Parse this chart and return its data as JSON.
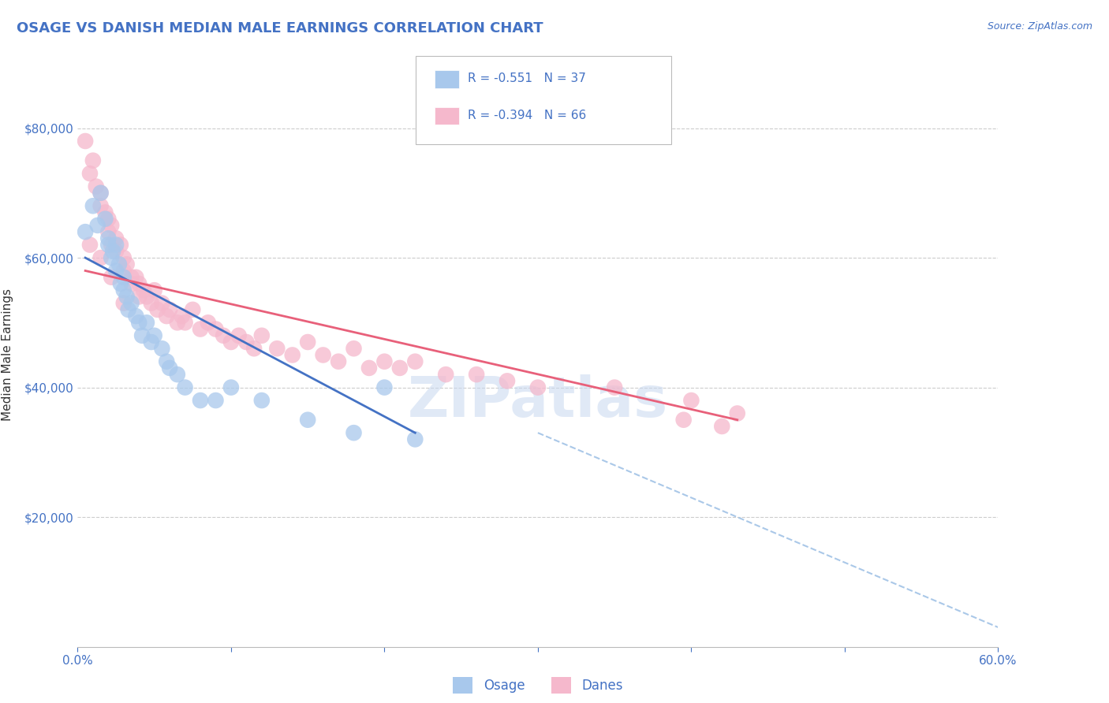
{
  "title": "OSAGE VS DANISH MEDIAN MALE EARNINGS CORRELATION CHART",
  "source_text": "Source: ZipAtlas.com",
  "ylabel": "Median Male Earnings",
  "xmin": 0.0,
  "xmax": 0.6,
  "ymin": 0,
  "ymax": 90000,
  "yticks": [
    20000,
    40000,
    60000,
    80000
  ],
  "ytick_labels": [
    "$20,000",
    "$40,000",
    "$60,000",
    "$80,000"
  ],
  "xticks": [
    0.0,
    0.1,
    0.2,
    0.3,
    0.4,
    0.5,
    0.6
  ],
  "xtick_labels": [
    "0.0%",
    "",
    "",
    "",
    "",
    "",
    "60.0%"
  ],
  "blue_color": "#a8c8ec",
  "pink_color": "#f5b8cc",
  "blue_line_color": "#4472c4",
  "pink_line_color": "#e8607a",
  "axis_color": "#4472c4",
  "title_color": "#4472c4",
  "background_color": "#ffffff",
  "grid_color": "#cccccc",
  "watermark_color": "#c8d8f0",
  "osage_x": [
    0.005,
    0.01,
    0.013,
    0.015,
    0.018,
    0.02,
    0.02,
    0.022,
    0.023,
    0.025,
    0.025,
    0.027,
    0.028,
    0.03,
    0.03,
    0.032,
    0.033,
    0.035,
    0.038,
    0.04,
    0.042,
    0.045,
    0.048,
    0.05,
    0.055,
    0.058,
    0.06,
    0.065,
    0.07,
    0.08,
    0.09,
    0.1,
    0.12,
    0.15,
    0.18,
    0.2,
    0.22
  ],
  "osage_y": [
    64000,
    68000,
    65000,
    70000,
    66000,
    63000,
    62000,
    60000,
    61000,
    58000,
    62000,
    59000,
    56000,
    57000,
    55000,
    54000,
    52000,
    53000,
    51000,
    50000,
    48000,
    50000,
    47000,
    48000,
    46000,
    44000,
    43000,
    42000,
    40000,
    38000,
    38000,
    40000,
    38000,
    35000,
    33000,
    40000,
    32000
  ],
  "danes_x": [
    0.005,
    0.008,
    0.01,
    0.012,
    0.015,
    0.015,
    0.018,
    0.02,
    0.02,
    0.022,
    0.022,
    0.025,
    0.025,
    0.028,
    0.03,
    0.03,
    0.032,
    0.035,
    0.035,
    0.038,
    0.04,
    0.04,
    0.043,
    0.045,
    0.048,
    0.05,
    0.052,
    0.055,
    0.058,
    0.06,
    0.065,
    0.068,
    0.07,
    0.075,
    0.08,
    0.085,
    0.09,
    0.095,
    0.1,
    0.105,
    0.11,
    0.115,
    0.12,
    0.13,
    0.14,
    0.15,
    0.16,
    0.17,
    0.18,
    0.19,
    0.2,
    0.21,
    0.22,
    0.24,
    0.26,
    0.28,
    0.3,
    0.35,
    0.4,
    0.43,
    0.008,
    0.015,
    0.022,
    0.03,
    0.395,
    0.42
  ],
  "danes_y": [
    78000,
    73000,
    75000,
    71000,
    70000,
    68000,
    67000,
    66000,
    64000,
    65000,
    62000,
    63000,
    61000,
    62000,
    60000,
    58000,
    59000,
    57000,
    56000,
    57000,
    56000,
    54000,
    55000,
    54000,
    53000,
    55000,
    52000,
    53000,
    51000,
    52000,
    50000,
    51000,
    50000,
    52000,
    49000,
    50000,
    49000,
    48000,
    47000,
    48000,
    47000,
    46000,
    48000,
    46000,
    45000,
    47000,
    45000,
    44000,
    46000,
    43000,
    44000,
    43000,
    44000,
    42000,
    42000,
    41000,
    40000,
    40000,
    38000,
    36000,
    62000,
    60000,
    57000,
    53000,
    35000,
    34000
  ],
  "dash_line_x": [
    0.3,
    0.6
  ],
  "dash_line_y": [
    33000,
    3000
  ],
  "blue_trend_x": [
    0.005,
    0.22
  ],
  "blue_trend_y": [
    60000,
    33000
  ],
  "pink_trend_x": [
    0.005,
    0.43
  ],
  "pink_trend_y": [
    58000,
    35000
  ]
}
